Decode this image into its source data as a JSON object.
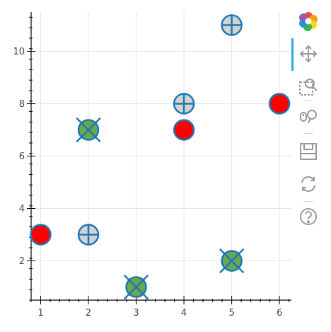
{
  "chart_data": {
    "type": "scatter",
    "title": "",
    "xlabel": "",
    "ylabel": "",
    "xlim": [
      0.8,
      6.25
    ],
    "ylim": [
      0.5,
      11.5
    ],
    "x_ticks": [
      1,
      2,
      3,
      4,
      5,
      6
    ],
    "y_ticks": [
      2,
      4,
      6,
      8,
      10
    ],
    "grid": true,
    "series": [
      {
        "marker": "circle",
        "fill": "#ff0000",
        "stroke": "#1f77b4",
        "x": [
          1,
          4,
          6
        ],
        "y": [
          3,
          7,
          8
        ]
      },
      {
        "marker": "circle_cross",
        "fill": "#d3d3d3",
        "stroke": "#1f77b4",
        "x": [
          2,
          4,
          5
        ],
        "y": [
          3,
          8,
          11
        ]
      },
      {
        "marker": "circle_x",
        "fill": "#6aa84f",
        "stroke": "#1f77b4",
        "x": [
          2,
          3,
          5
        ],
        "y": [
          7,
          1,
          2
        ]
      }
    ]
  },
  "toolbar": {
    "tools": [
      {
        "icon": "bokeh-logo-icon",
        "active": false
      },
      {
        "icon": "pan-icon",
        "active": true
      },
      {
        "icon": "box-zoom-icon",
        "active": false
      },
      {
        "icon": "wheel-zoom-icon",
        "active": false
      },
      {
        "icon": "save-icon",
        "active": false
      },
      {
        "icon": "reset-icon",
        "active": false
      },
      {
        "icon": "help-icon",
        "active": false
      }
    ]
  }
}
